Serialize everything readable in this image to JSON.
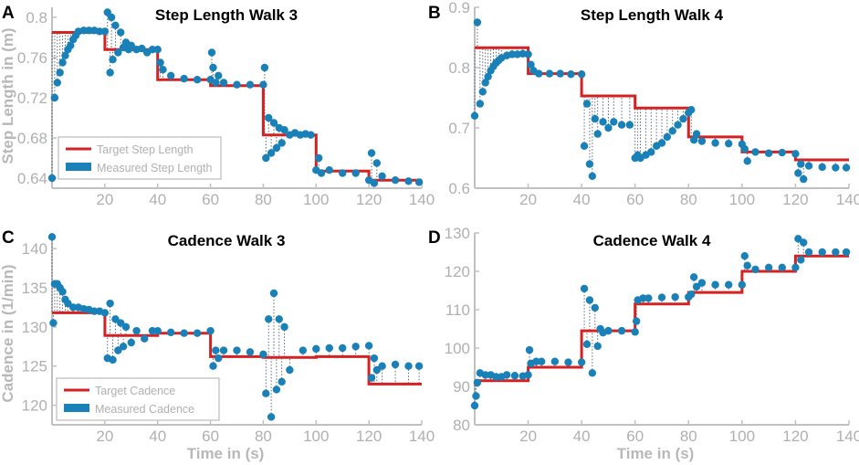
{
  "colors": {
    "target": "#d42222",
    "measured": "#1a80b8",
    "axis": "#c0c0c0",
    "tick_text": "#b0b0b0",
    "connector": "#4a5a6a"
  },
  "chart_data": [
    {
      "id": "A",
      "type": "scatter",
      "panel_letter": "A",
      "title": "Step Length Walk 3",
      "xlabel": "",
      "ylabel": "Step Length  in (m)",
      "xlim": [
        0,
        140
      ],
      "ylim": [
        0.63,
        0.81
      ],
      "xticks": [
        20,
        40,
        60,
        80,
        100,
        120,
        140
      ],
      "yticks": [
        0.64,
        0.68,
        0.72,
        0.76,
        0.8
      ],
      "ytick_labels": [
        "0.64",
        "0.68",
        "0.72",
        "0.76",
        "0.8"
      ],
      "legend": {
        "position": "bottom-left",
        "entries": [
          "Target Step Length",
          "Measured Step Length"
        ]
      },
      "series": [
        {
          "name": "Target Step Length",
          "kind": "step",
          "x": [
            0,
            20,
            20,
            40,
            40,
            60,
            60,
            80,
            80,
            100,
            100,
            120,
            120,
            140
          ],
          "y": [
            0.785,
            0.785,
            0.768,
            0.768,
            0.738,
            0.738,
            0.732,
            0.732,
            0.683,
            0.683,
            0.647,
            0.647,
            0.638,
            0.638
          ]
        },
        {
          "name": "Measured Step Length",
          "kind": "scatter",
          "x": [
            0,
            1,
            2,
            3,
            4,
            5,
            6,
            7,
            8,
            9,
            10,
            12,
            14,
            16,
            18,
            20,
            21,
            22,
            22.5,
            23,
            24,
            25,
            26,
            27,
            28,
            29,
            30,
            32,
            34,
            36,
            38,
            40,
            41,
            42,
            45,
            50,
            55,
            60,
            60.5,
            61,
            62,
            63,
            65,
            70,
            75,
            80,
            80.5,
            81,
            82,
            83,
            84,
            85,
            86,
            87,
            88,
            90,
            92,
            94,
            96,
            98,
            100,
            101,
            102,
            105,
            110,
            115,
            120,
            121,
            122,
            123,
            125,
            130,
            135,
            139
          ],
          "y": [
            0.64,
            0.72,
            0.735,
            0.745,
            0.755,
            0.762,
            0.768,
            0.772,
            0.778,
            0.782,
            0.786,
            0.787,
            0.787,
            0.787,
            0.786,
            0.786,
            0.805,
            0.745,
            0.8,
            0.758,
            0.792,
            0.765,
            0.785,
            0.77,
            0.775,
            0.768,
            0.772,
            0.768,
            0.769,
            0.765,
            0.768,
            0.768,
            0.755,
            0.748,
            0.742,
            0.739,
            0.738,
            0.738,
            0.765,
            0.75,
            0.735,
            0.742,
            0.735,
            0.733,
            0.733,
            0.733,
            0.75,
            0.66,
            0.7,
            0.665,
            0.695,
            0.67,
            0.69,
            0.675,
            0.688,
            0.683,
            0.685,
            0.683,
            0.684,
            0.683,
            0.648,
            0.66,
            0.645,
            0.648,
            0.645,
            0.645,
            0.638,
            0.665,
            0.635,
            0.655,
            0.642,
            0.638,
            0.637,
            0.636
          ]
        }
      ]
    },
    {
      "id": "B",
      "type": "scatter",
      "panel_letter": "B",
      "title": "Step Length Walk 4",
      "xlabel": "",
      "ylabel": "",
      "xlim": [
        0,
        140
      ],
      "ylim": [
        0.6,
        0.9
      ],
      "xticks": [
        20,
        40,
        60,
        80,
        100,
        120,
        140
      ],
      "yticks": [
        0.6,
        0.7,
        0.8,
        0.9
      ],
      "ytick_labels": [
        "0.6",
        "0.7",
        "0.8",
        "0.9"
      ],
      "series": [
        {
          "name": "Target Step Length",
          "kind": "step",
          "x": [
            0,
            20,
            20,
            40,
            40,
            60,
            60,
            80,
            80,
            100,
            100,
            120,
            120,
            140
          ],
          "y": [
            0.833,
            0.833,
            0.79,
            0.79,
            0.753,
            0.753,
            0.733,
            0.733,
            0.685,
            0.685,
            0.66,
            0.66,
            0.647,
            0.647
          ]
        },
        {
          "name": "Measured Step Length",
          "kind": "scatter",
          "x": [
            0,
            1,
            2,
            3,
            4,
            5,
            6,
            7,
            8,
            9,
            10,
            12,
            14,
            16,
            18,
            20,
            21,
            22,
            24,
            28,
            32,
            36,
            40,
            41,
            42,
            43,
            44,
            45,
            46,
            48,
            50,
            52,
            55,
            58,
            60,
            61,
            62,
            64,
            66,
            68,
            70,
            72,
            74,
            76,
            78,
            80,
            81,
            82,
            83,
            85,
            90,
            95,
            100,
            101,
            102,
            105,
            110,
            115,
            120,
            121,
            122,
            123,
            125,
            130,
            135,
            139
          ],
          "y": [
            0.72,
            0.875,
            0.74,
            0.76,
            0.775,
            0.785,
            0.795,
            0.802,
            0.808,
            0.812,
            0.816,
            0.82,
            0.822,
            0.822,
            0.823,
            0.822,
            0.805,
            0.795,
            0.79,
            0.79,
            0.79,
            0.789,
            0.789,
            0.67,
            0.74,
            0.64,
            0.62,
            0.715,
            0.69,
            0.71,
            0.7,
            0.71,
            0.705,
            0.705,
            0.65,
            0.655,
            0.65,
            0.655,
            0.66,
            0.67,
            0.675,
            0.685,
            0.695,
            0.705,
            0.715,
            0.725,
            0.73,
            0.68,
            0.69,
            0.678,
            0.675,
            0.674,
            0.673,
            0.665,
            0.645,
            0.66,
            0.658,
            0.659,
            0.657,
            0.625,
            0.64,
            0.615,
            0.637,
            0.635,
            0.634,
            0.634
          ]
        }
      ]
    },
    {
      "id": "C",
      "type": "scatter",
      "panel_letter": "C",
      "title": "Cadence Walk 3",
      "xlabel": "Time in (s)",
      "ylabel": "Cadence  in (1/min)",
      "xlim": [
        0,
        140
      ],
      "ylim": [
        117.5,
        142
      ],
      "xticks": [
        20,
        40,
        60,
        80,
        100,
        120,
        140
      ],
      "yticks": [
        120,
        125,
        130,
        135,
        140
      ],
      "ytick_labels": [
        "120",
        "125",
        "130",
        "135",
        "140"
      ],
      "legend": {
        "position": "bottom-left",
        "entries": [
          "Target Cadence",
          "Measured Cadence"
        ]
      },
      "series": [
        {
          "name": "Target Cadence",
          "kind": "step",
          "x": [
            0,
            20,
            20,
            40,
            40,
            60,
            60,
            80,
            80,
            100,
            100,
            120,
            120,
            140
          ],
          "y": [
            131.8,
            131.8,
            128.9,
            128.9,
            129.2,
            129.2,
            126.2,
            126.2,
            126.1,
            126.1,
            126.2,
            126.2,
            122.7,
            122.7
          ]
        },
        {
          "name": "Measured Cadence",
          "kind": "scatter",
          "x": [
            0,
            0.5,
            1,
            2,
            3,
            4,
            5,
            6,
            8,
            10,
            12,
            14,
            16,
            18,
            20,
            21,
            22,
            23,
            24,
            25,
            26,
            27,
            28,
            30,
            32,
            35,
            38,
            40,
            45,
            50,
            55,
            60,
            61,
            62,
            63,
            65,
            70,
            75,
            80,
            81,
            82,
            83,
            84,
            85,
            86,
            87,
            88,
            90,
            95,
            100,
            105,
            110,
            115,
            120,
            121,
            122,
            123,
            125,
            130,
            135,
            139
          ],
          "y": [
            141.5,
            130.5,
            135.5,
            135.5,
            135,
            134.5,
            133.5,
            133,
            132.5,
            132.5,
            132.3,
            132.2,
            132,
            132,
            131.8,
            126,
            133,
            125.8,
            131,
            127,
            130.5,
            127.5,
            130,
            128,
            129.5,
            128.5,
            129.5,
            129.5,
            129.3,
            129.2,
            129.2,
            129.5,
            125,
            127,
            126,
            127,
            127,
            126.8,
            126.5,
            121.5,
            131,
            118.5,
            134.3,
            122,
            131,
            123,
            130,
            124.5,
            127,
            127.2,
            127.3,
            127.3,
            127.5,
            127.6,
            123.5,
            126,
            124.5,
            125,
            125.2,
            125,
            125
          ]
        }
      ]
    },
    {
      "id": "D",
      "type": "scatter",
      "panel_letter": "D",
      "title": "Cadence Walk 4",
      "xlabel": "Time in (s)",
      "ylabel": "",
      "xlim": [
        0,
        140
      ],
      "ylim": [
        80,
        130
      ],
      "xticks": [
        20,
        40,
        60,
        80,
        100,
        120,
        140
      ],
      "yticks": [
        80,
        90,
        100,
        110,
        120,
        130
      ],
      "ytick_labels": [
        "80",
        "90",
        "100",
        "110",
        "120",
        "130"
      ],
      "series": [
        {
          "name": "Target Cadence",
          "kind": "step",
          "x": [
            0,
            20,
            20,
            40,
            40,
            60,
            60,
            80,
            80,
            100,
            100,
            120,
            120,
            140
          ],
          "y": [
            91.5,
            91.5,
            95,
            95,
            104.5,
            104.5,
            111.5,
            111.5,
            114.5,
            114.5,
            120,
            120,
            124,
            124
          ]
        },
        {
          "name": "Measured Cadence",
          "kind": "scatter",
          "x": [
            0,
            0.5,
            1,
            2,
            4,
            6,
            8,
            10,
            12,
            15,
            18,
            20,
            20.5,
            21,
            23,
            25,
            30,
            35,
            40,
            41,
            42,
            43,
            44,
            45,
            46,
            47,
            48,
            50,
            55,
            60,
            60.5,
            61,
            63,
            65,
            70,
            75,
            80,
            81,
            82,
            83,
            85,
            90,
            95,
            100,
            101,
            102,
            105,
            110,
            115,
            120,
            121,
            122,
            123,
            125,
            130,
            135,
            139
          ],
          "y": [
            85,
            87.5,
            91,
            93.5,
            93,
            93,
            92.5,
            92.5,
            93,
            92.8,
            92.7,
            93,
            99.5,
            96,
            96.5,
            96.5,
            96.5,
            96.3,
            96.3,
            115.5,
            101,
            112.5,
            93.5,
            110.5,
            100.5,
            105,
            104,
            104.5,
            104.5,
            104.2,
            107,
            112.5,
            113,
            113,
            113.2,
            113.3,
            113.3,
            114,
            118.5,
            116,
            117,
            116.5,
            116.5,
            116.5,
            124,
            121.5,
            120.5,
            121,
            121,
            121,
            128.5,
            123,
            127.5,
            125,
            125,
            125,
            125
          ]
        }
      ]
    }
  ]
}
